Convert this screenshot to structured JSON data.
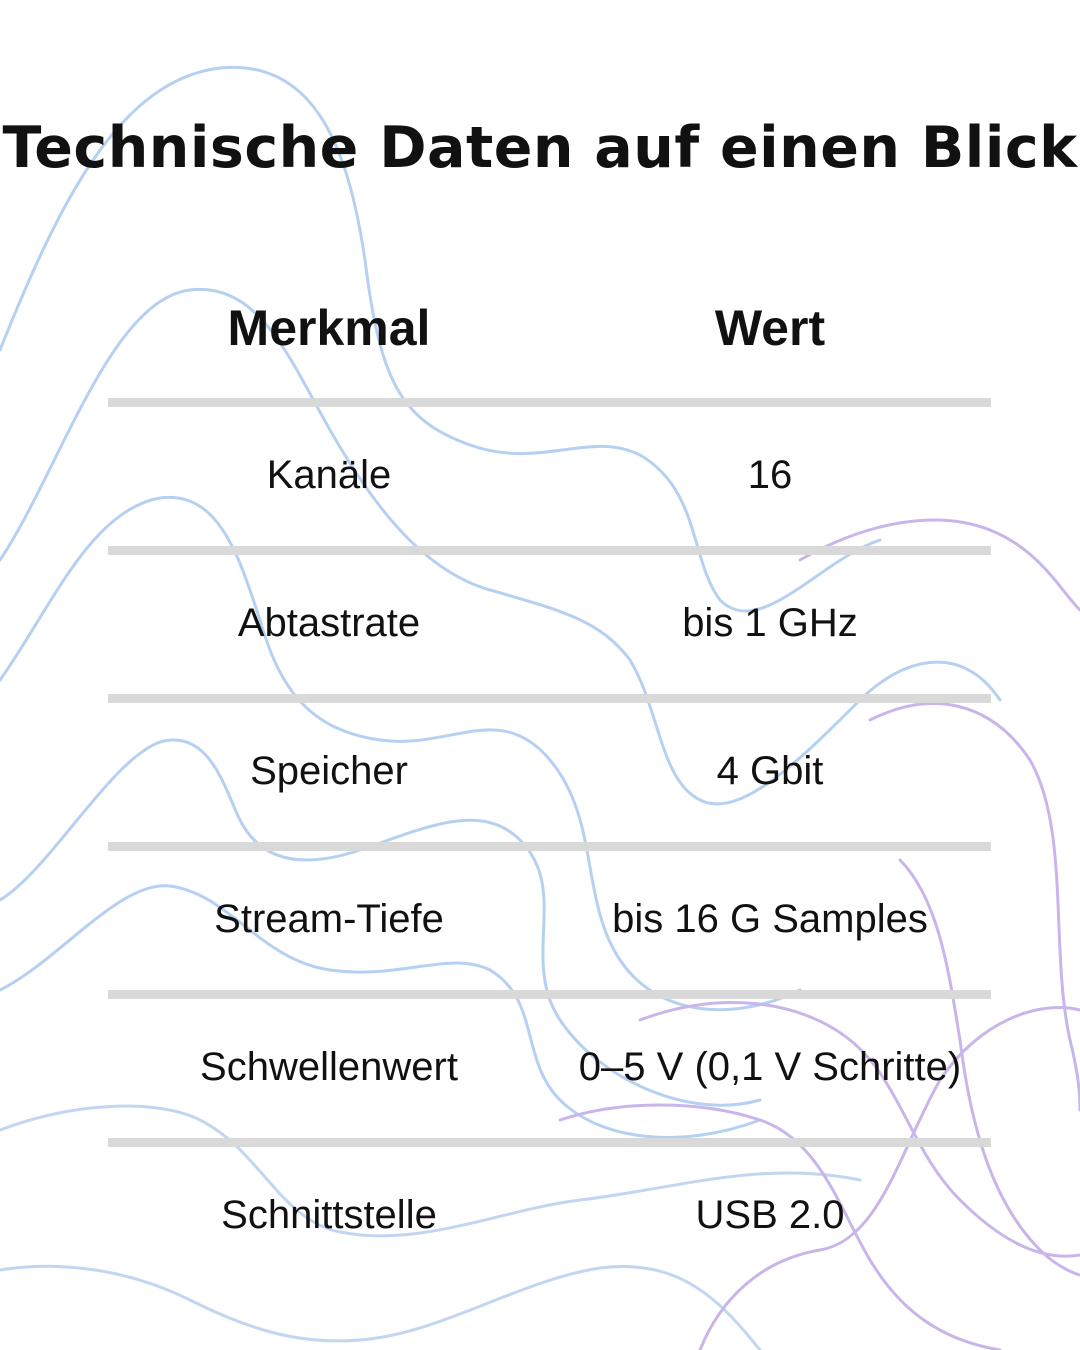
{
  "title": "Technische Daten auf einen Blick",
  "table": {
    "headers": [
      "Merkmal",
      "Wert"
    ],
    "rows": [
      {
        "feature": "Kanäle",
        "value": "16"
      },
      {
        "feature": "Abtastrate",
        "value": "bis 1 GHz"
      },
      {
        "feature": "Speicher",
        "value": "4 Gbit"
      },
      {
        "feature": "Stream-Tiefe",
        "value": "bis 16 G Samples"
      },
      {
        "feature": "Schwellenwert",
        "value": "0–5 V (0,1 V Schritte)"
      },
      {
        "feature": "Schnittstelle",
        "value": "USB 2.0"
      }
    ]
  },
  "colors": {
    "text": "#111111",
    "rule": "#d9d9d9",
    "wave_blue": "#a9c8f0",
    "wave_purple": "#c7b3ea"
  }
}
